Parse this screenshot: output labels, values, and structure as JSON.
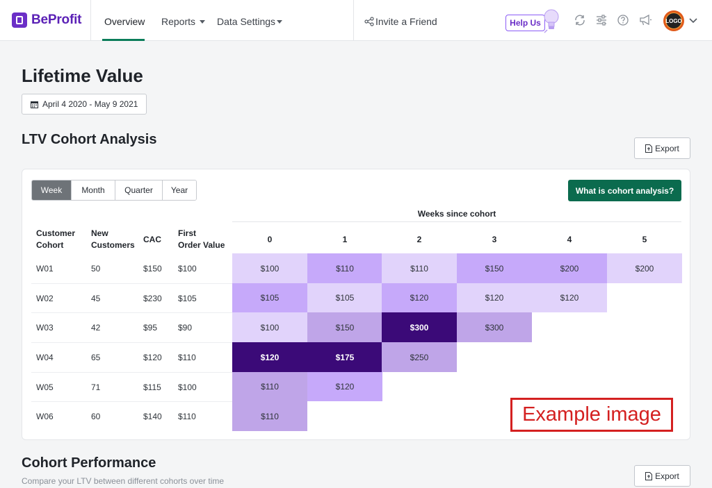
{
  "brand": {
    "name": "BeProfit"
  },
  "nav": {
    "overview": "Overview",
    "reports": "Reports",
    "data_settings": "Data Settings",
    "invite": "Invite a Friend",
    "help": "Help Us",
    "avatar_text": "LOGO"
  },
  "page": {
    "title": "Lifetime Value",
    "date_range": "April 4 2020 - May 9 2021"
  },
  "cohort": {
    "title": "LTV Cohort Analysis",
    "export": "Export",
    "periods": [
      "Week",
      "Month",
      "Quarter",
      "Year"
    ],
    "selected_period": "Week",
    "what_button": "What is cohort analysis?",
    "weeks_label": "Weeks since cohort",
    "headers": {
      "cohort_1": "Customer",
      "cohort_2": "Cohort",
      "new_1": "New",
      "new_2": "Customers",
      "cac": "CAC",
      "first_1": "First",
      "first_2": "Order Value"
    },
    "week_headers": [
      "0",
      "1",
      "2",
      "3",
      "4",
      "5"
    ],
    "rows": [
      {
        "cohort": "W01",
        "new": "50",
        "cac": "$150",
        "first": "$100",
        "values": [
          "$100",
          "$110",
          "$110",
          "$150",
          "$200",
          "$200"
        ]
      },
      {
        "cohort": "W02",
        "new": "45",
        "cac": "$230",
        "first": "$105",
        "values": [
          "$105",
          "$105",
          "$120",
          "$120",
          "$120"
        ]
      },
      {
        "cohort": "W03",
        "new": "42",
        "cac": "$95",
        "first": "$90",
        "values": [
          "$100",
          "$150",
          "$300",
          "$300"
        ]
      },
      {
        "cohort": "W04",
        "new": "65",
        "cac": "$120",
        "first": "$110",
        "values": [
          "$120",
          "$175",
          "$250"
        ]
      },
      {
        "cohort": "W05",
        "new": "71",
        "cac": "$115",
        "first": "$100",
        "values": [
          "$110",
          "$120"
        ]
      },
      {
        "cohort": "W06",
        "new": "60",
        "cac": "$140",
        "first": "$110",
        "values": [
          "$110"
        ]
      }
    ],
    "heat_colors": [
      [
        "#e1d3fb",
        "#c6a9fa",
        "#e1d3fb",
        "#c6a9fa",
        "#c6a9fa",
        "#e1d3fb"
      ],
      [
        "#c6a9fa",
        "#e1d3fb",
        "#c6a9fa",
        "#e1d3fb",
        "#e1d3fb"
      ],
      [
        "#e1d3fb",
        "#bfa5e8",
        "#3b0a78",
        "#bfa5e8"
      ],
      [
        "#3b0a78",
        "#3b0a78",
        "#bfa5e8"
      ],
      [
        "#bfa5e8",
        "#c6a9fa"
      ],
      [
        "#bfa5e8"
      ]
    ],
    "watermark": "Example image"
  },
  "performance": {
    "title": "Cohort Performance",
    "subtitle": "Compare your LTV between different cohorts over time",
    "export": "Export"
  }
}
